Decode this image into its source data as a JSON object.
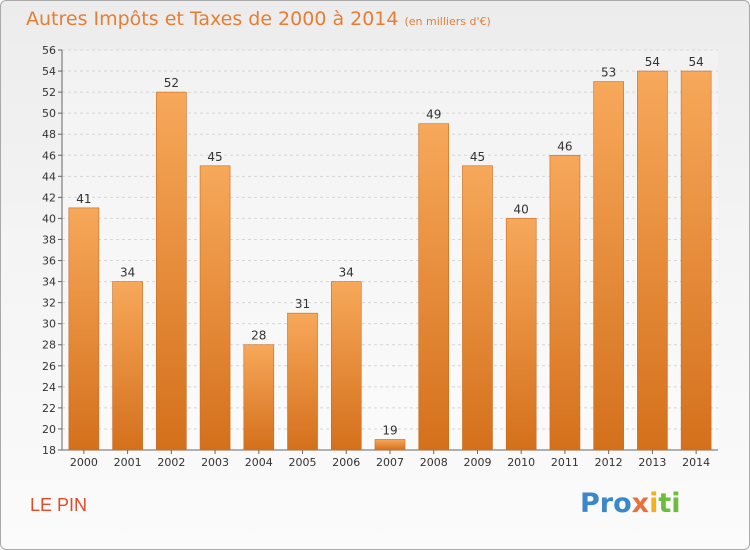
{
  "header": {
    "title": "Autres Impôts et Taxes de 2000 à 2014",
    "subtitle": "(en milliers d'€)"
  },
  "footer": {
    "city": "LE PIN",
    "logo": "Proxiti",
    "logo_parts": [
      "Pro",
      "x",
      "i",
      "ti"
    ]
  },
  "colors": {
    "bar_light": "#f7a85a",
    "bar_dark": "#d4701c",
    "title": "#e57e34",
    "city": "#e24b28"
  },
  "chart_data": {
    "type": "bar",
    "title": "Autres Impôts et Taxes de 2000 à 2014",
    "subtitle": "(en milliers d'€)",
    "xlabel": "",
    "ylabel": "",
    "categories": [
      "2000",
      "2001",
      "2002",
      "2003",
      "2004",
      "2005",
      "2006",
      "2007",
      "2008",
      "2009",
      "2010",
      "2011",
      "2012",
      "2013",
      "2014"
    ],
    "values": [
      41,
      34,
      52,
      45,
      28,
      31,
      34,
      19,
      49,
      45,
      40,
      46,
      53,
      54,
      54
    ],
    "ylim": [
      18,
      56
    ],
    "yticks": [
      18,
      20,
      22,
      24,
      26,
      28,
      30,
      32,
      34,
      36,
      38,
      40,
      42,
      44,
      46,
      48,
      50,
      52,
      54,
      56
    ],
    "grid": true,
    "legend": "none"
  }
}
